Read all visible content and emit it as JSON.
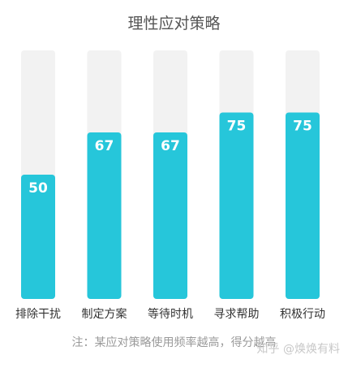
{
  "chart_data": {
    "type": "bar",
    "title": "理性应对策略",
    "categories": [
      "排除干扰",
      "制定方案",
      "等待时机",
      "寻求帮助",
      "积极行动"
    ],
    "values": [
      50,
      67,
      67,
      75,
      75
    ],
    "ylim": [
      0,
      100
    ],
    "bar_color": "#26c6da",
    "track_color": "#f2f2f2",
    "note": "注：某应对策略使用频率越高，得分越高",
    "grid": false
  },
  "watermark": "知乎 @焕焕有料"
}
